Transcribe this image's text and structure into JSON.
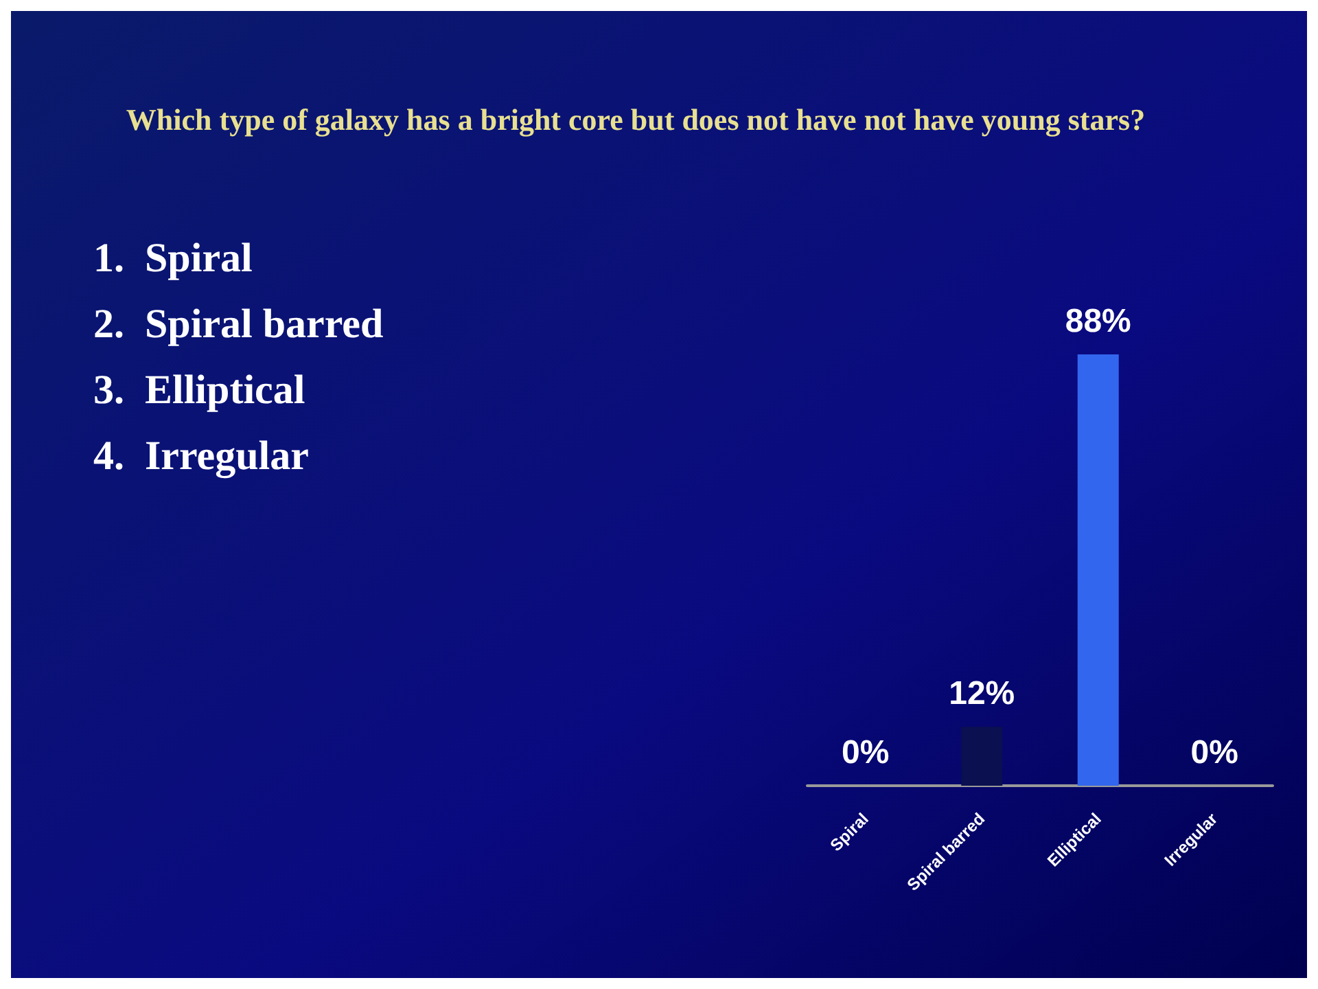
{
  "chart_data": {
    "type": "bar",
    "title": "Which type of galaxy has a bright core but does not have not have young stars?",
    "annotations": [
      "1.  Spiral",
      "2.  Spiral barred",
      "3.  Elliptical",
      "4.  Irregular"
    ],
    "categories": [
      "Spiral",
      "Spiral barred",
      "Elliptical",
      "Irregular"
    ],
    "values": [
      0,
      12,
      88,
      0
    ],
    "colors": [
      "#d2691e",
      "#0a1050",
      "#3366ee",
      "#cccc22"
    ],
    "value_labels": [
      "0%",
      "12%",
      "88%",
      "0%"
    ]
  }
}
